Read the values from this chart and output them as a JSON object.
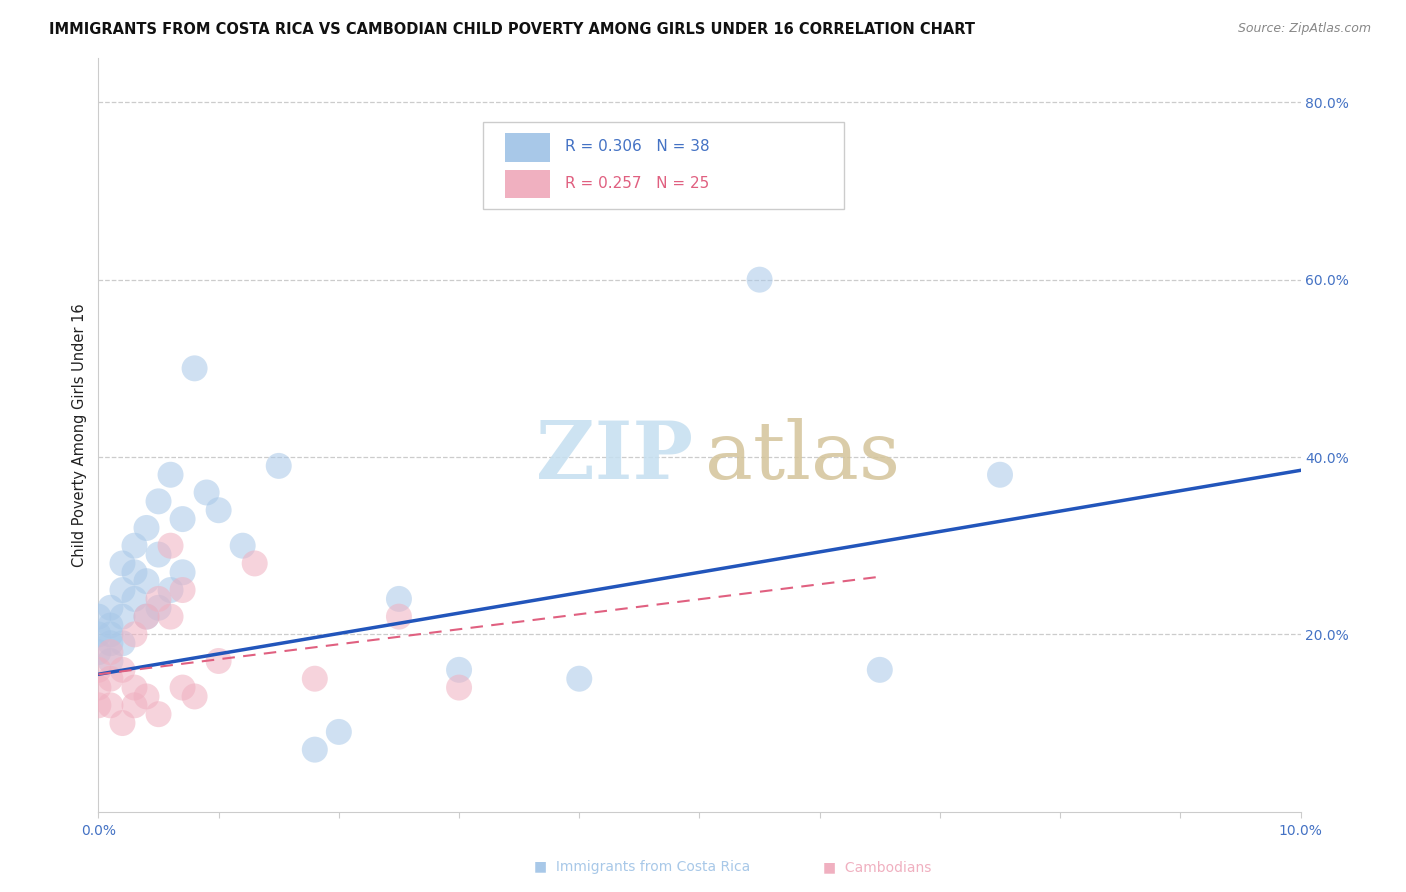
{
  "title": "IMMIGRANTS FROM COSTA RICA VS CAMBODIAN CHILD POVERTY AMONG GIRLS UNDER 16 CORRELATION CHART",
  "source": "Source: ZipAtlas.com",
  "ylabel": "Child Poverty Among Girls Under 16",
  "color_blue": "#a8c8e8",
  "color_pink": "#f0b0c0",
  "color_line_blue": "#2255bb",
  "color_line_pink": "#e06080",
  "xlim": [
    0.0,
    0.1
  ],
  "ylim": [
    0.0,
    0.85
  ],
  "blue_line_x": [
    0.0,
    0.1
  ],
  "blue_line_y": [
    0.155,
    0.385
  ],
  "pink_line_x": [
    0.0,
    0.065
  ],
  "pink_line_y": [
    0.155,
    0.265
  ],
  "blue_x": [
    0.0,
    0.0,
    0.0,
    0.001,
    0.001,
    0.001,
    0.001,
    0.001,
    0.002,
    0.002,
    0.002,
    0.002,
    0.003,
    0.003,
    0.003,
    0.004,
    0.004,
    0.004,
    0.005,
    0.005,
    0.005,
    0.006,
    0.006,
    0.007,
    0.007,
    0.008,
    0.009,
    0.01,
    0.012,
    0.015,
    0.018,
    0.02,
    0.025,
    0.03,
    0.04,
    0.055,
    0.065,
    0.075
  ],
  "blue_y": [
    0.2,
    0.22,
    0.18,
    0.21,
    0.19,
    0.23,
    0.17,
    0.2,
    0.25,
    0.22,
    0.28,
    0.19,
    0.3,
    0.24,
    0.27,
    0.32,
    0.26,
    0.22,
    0.35,
    0.29,
    0.23,
    0.38,
    0.25,
    0.33,
    0.27,
    0.5,
    0.36,
    0.34,
    0.3,
    0.39,
    0.07,
    0.09,
    0.24,
    0.16,
    0.15,
    0.6,
    0.16,
    0.38
  ],
  "pink_x": [
    0.0,
    0.0,
    0.0,
    0.001,
    0.001,
    0.001,
    0.002,
    0.002,
    0.003,
    0.003,
    0.003,
    0.004,
    0.004,
    0.005,
    0.005,
    0.006,
    0.006,
    0.007,
    0.007,
    0.008,
    0.01,
    0.013,
    0.018,
    0.025,
    0.03
  ],
  "pink_y": [
    0.14,
    0.16,
    0.12,
    0.15,
    0.12,
    0.18,
    0.1,
    0.16,
    0.14,
    0.2,
    0.12,
    0.22,
    0.13,
    0.24,
    0.11,
    0.3,
    0.22,
    0.25,
    0.14,
    0.13,
    0.17,
    0.28,
    0.15,
    0.22,
    0.14
  ],
  "yticks": [
    0.2,
    0.4,
    0.6,
    0.8
  ],
  "ytick_labels": [
    "20.0%",
    "40.0%",
    "60.0%",
    "80.0%"
  ]
}
